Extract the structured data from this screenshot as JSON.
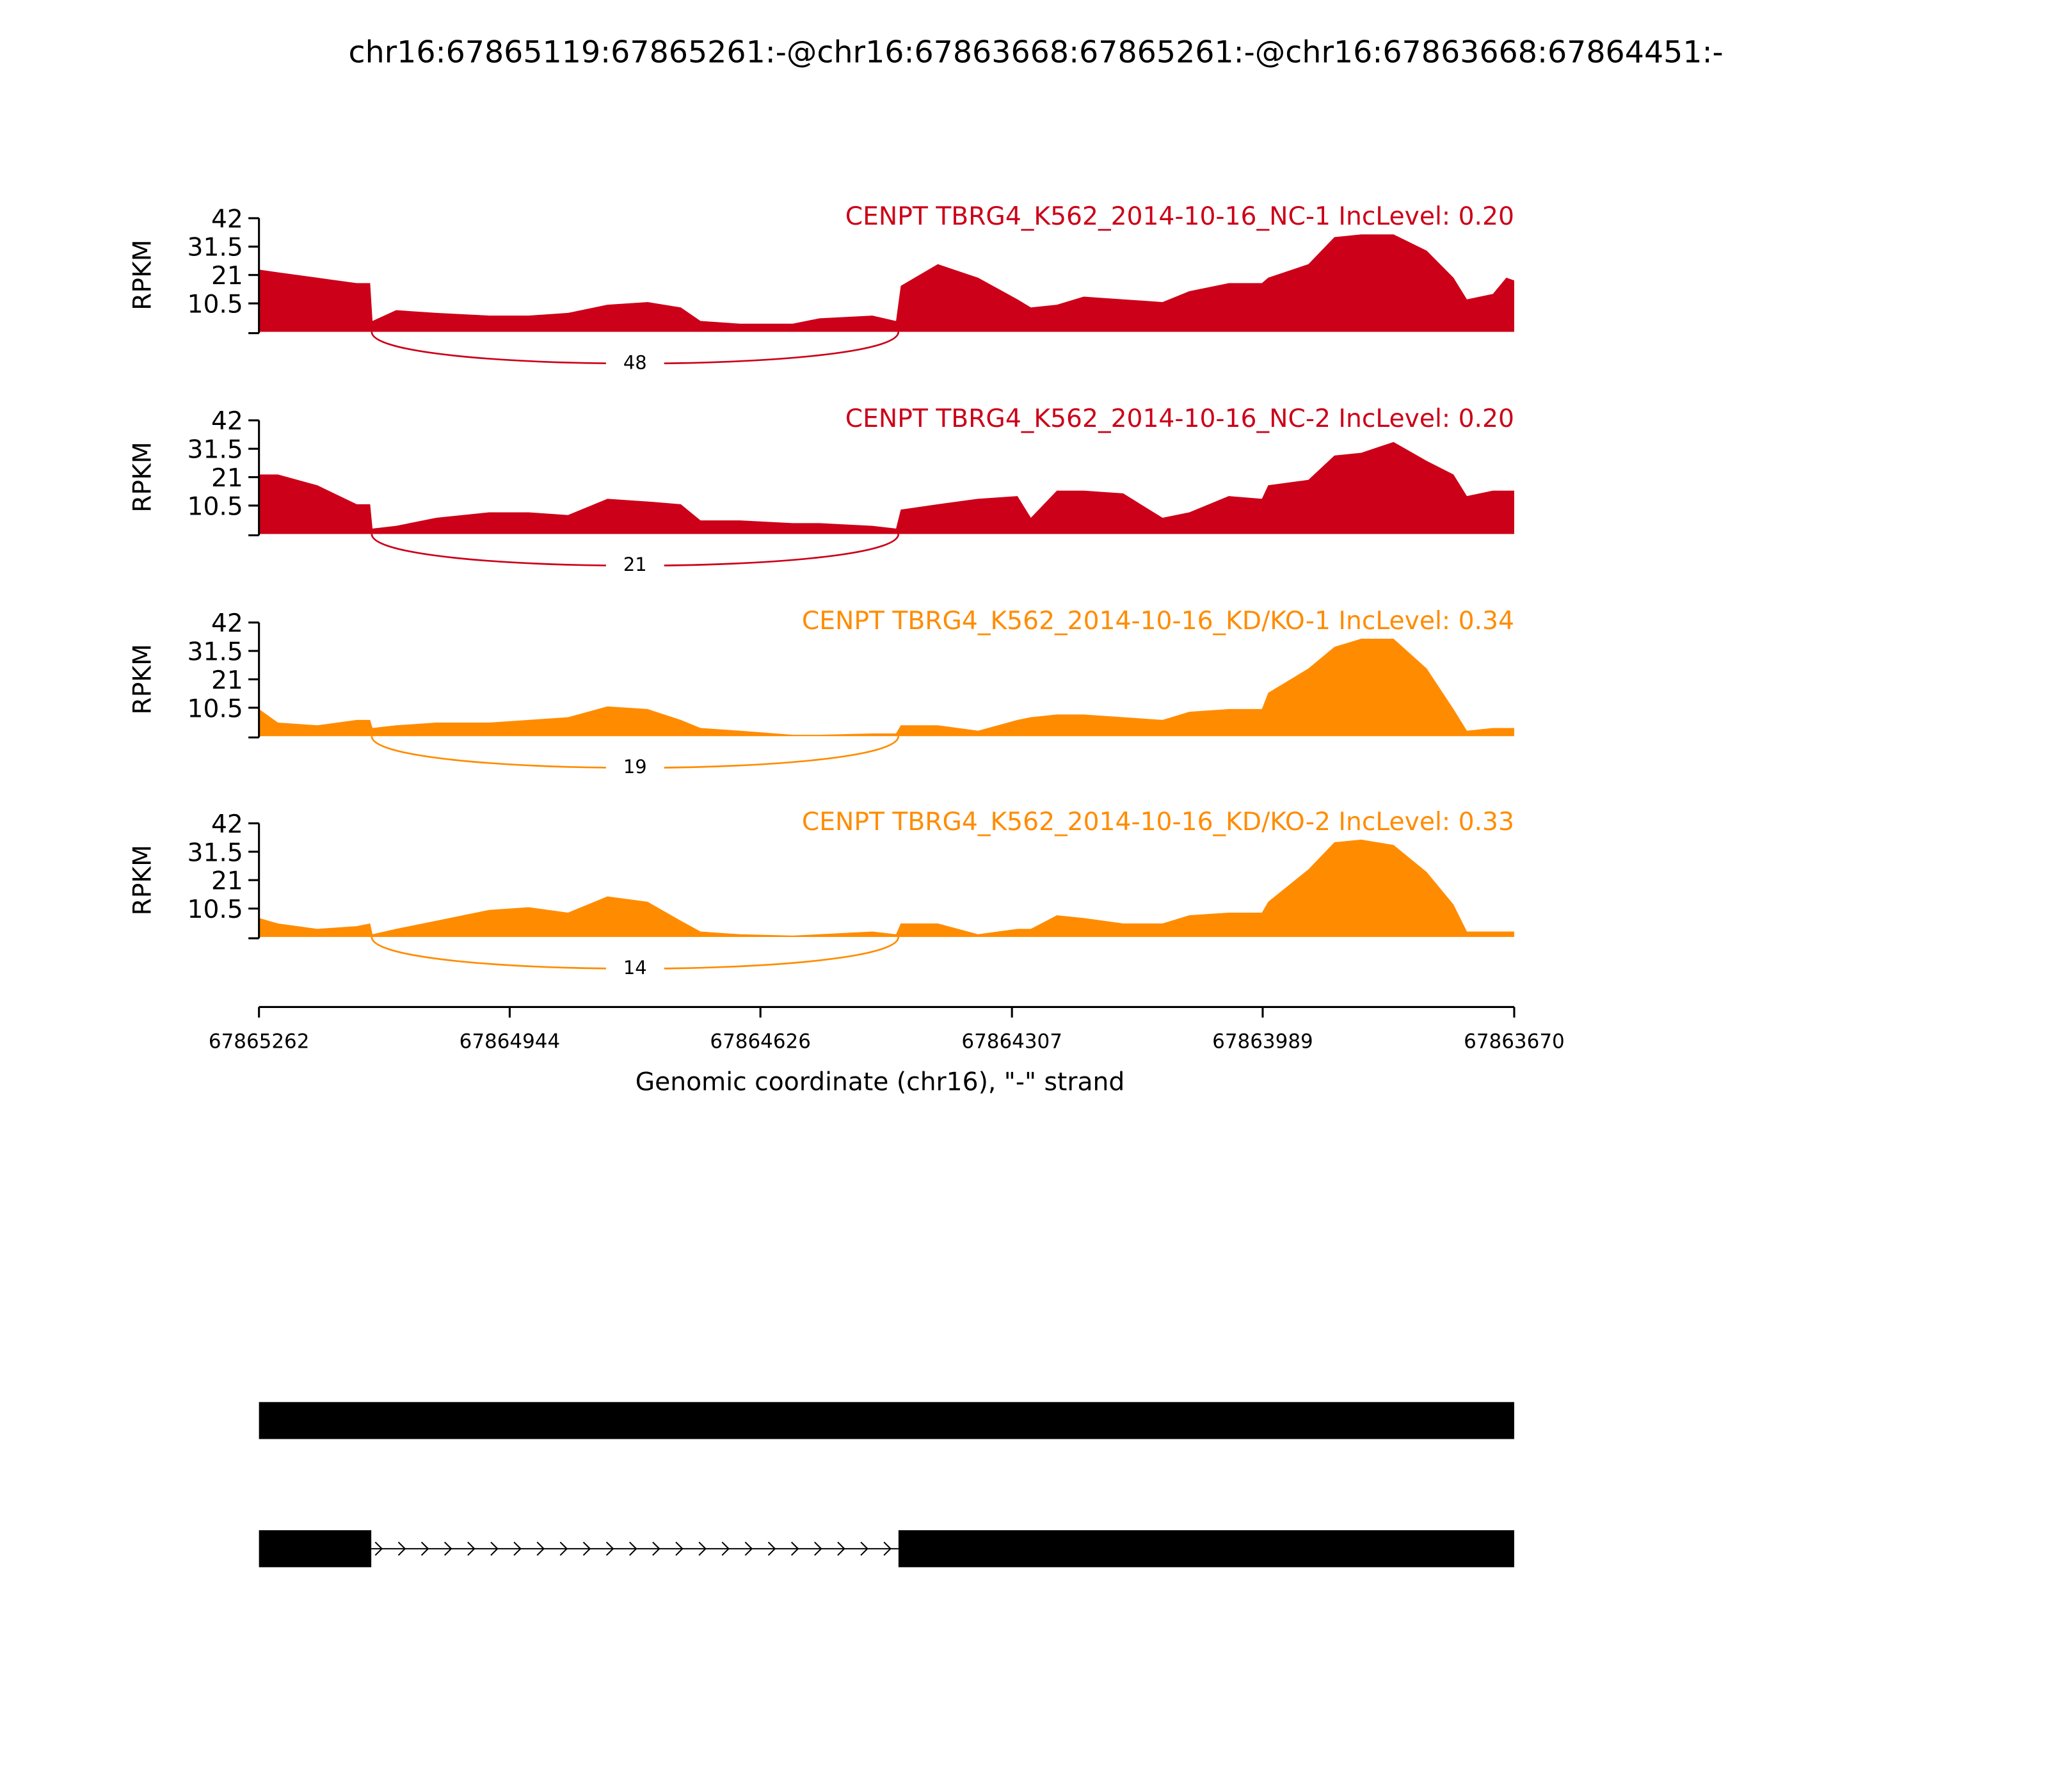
{
  "chart_data": [
    {
      "type": "area",
      "title": "chr16:67865119:67865261:-@chr16:67863668:67865261:-@chr16:67863668:67864451:-",
      "label": "CENPT TBRG4_K562_2014-10-16_NC-1 IncLevel: 0.20",
      "color": "#cc0018",
      "ylabel": "RPKM",
      "xlim": [
        67865262,
        67863670
      ],
      "ylim": [
        0,
        42
      ],
      "yticks": [
        10.5,
        21,
        31.5,
        42
      ],
      "x": [
        67865262,
        67865238,
        67865188,
        67865138,
        67865121,
        67865118,
        67865088,
        67865037,
        67864970,
        67864920,
        67864870,
        67864820,
        67864769,
        67864727,
        67864702,
        67864652,
        67864585,
        67864551,
        67864484,
        67864454,
        67864448,
        67864401,
        67864350,
        67864300,
        67864283,
        67864250,
        67864216,
        67864166,
        67864116,
        67864082,
        67864032,
        67863990,
        67863982,
        67863931,
        67863898,
        67863864,
        67863823,
        67863781,
        67863747,
        67863730,
        67863697,
        67863680,
        67863670
      ],
      "values": [
        23,
        22,
        20,
        18,
        18,
        4,
        8,
        7,
        6,
        6,
        7,
        10,
        11,
        9,
        4,
        3,
        3,
        5,
        6,
        4,
        17,
        25,
        20,
        12,
        9,
        10,
        13,
        12,
        11,
        15,
        18,
        18,
        20,
        25,
        35,
        36,
        36,
        30,
        20,
        12,
        14,
        20,
        19
      ],
      "junctions": [
        {
          "start": 67865119,
          "end": 67864451,
          "count": 48
        }
      ]
    },
    {
      "type": "area",
      "label": "CENPT TBRG4_K562_2014-10-16_NC-2 IncLevel: 0.20",
      "color": "#cc0018",
      "ylabel": "RPKM",
      "xlim": [
        67865262,
        67863670
      ],
      "ylim": [
        0,
        42
      ],
      "yticks": [
        10.5,
        21,
        31.5,
        42
      ],
      "x": [
        67865262,
        67865238,
        67865188,
        67865138,
        67865121,
        67865118,
        67865088,
        67865037,
        67864970,
        67864920,
        67864870,
        67864820,
        67864769,
        67864727,
        67864702,
        67864652,
        67864585,
        67864551,
        67864484,
        67864454,
        67864448,
        67864401,
        67864350,
        67864300,
        67864283,
        67864250,
        67864216,
        67864166,
        67864116,
        67864082,
        67864032,
        67863990,
        67863982,
        67863931,
        67863898,
        67863864,
        67863823,
        67863781,
        67863747,
        67863730,
        67863697,
        67863680,
        67863670
      ],
      "values": [
        22,
        22,
        18,
        11,
        11,
        2,
        3,
        6,
        8,
        8,
        7,
        13,
        12,
        11,
        5,
        5,
        4,
        4,
        3,
        2,
        9,
        11,
        13,
        14,
        6,
        16,
        16,
        15,
        6,
        8,
        14,
        13,
        18,
        20,
        29,
        30,
        34,
        27,
        22,
        14,
        16,
        16,
        16
      ],
      "junctions": [
        {
          "start": 67865119,
          "end": 67864451,
          "count": 21
        }
      ]
    },
    {
      "type": "area",
      "label": "CENPT TBRG4_K562_2014-10-16_KD/KO-1 IncLevel: 0.34",
      "color": "#ff8c00",
      "ylabel": "RPKM",
      "xlim": [
        67865262,
        67863670
      ],
      "ylim": [
        0,
        42
      ],
      "yticks": [
        10.5,
        21,
        31.5,
        42
      ],
      "x": [
        67865262,
        67865238,
        67865188,
        67865138,
        67865121,
        67865118,
        67865088,
        67865037,
        67864970,
        67864920,
        67864870,
        67864820,
        67864769,
        67864727,
        67864702,
        67864652,
        67864585,
        67864551,
        67864484,
        67864454,
        67864448,
        67864401,
        67864350,
        67864300,
        67864283,
        67864250,
        67864216,
        67864166,
        67864116,
        67864082,
        67864032,
        67863990,
        67863982,
        67863931,
        67863898,
        67863864,
        67863823,
        67863781,
        67863747,
        67863730,
        67863697,
        67863680,
        67863670
      ],
      "values": [
        10,
        5,
        4,
        6,
        6,
        3,
        4,
        5,
        5,
        6,
        7,
        11,
        10,
        6,
        3,
        2,
        0.5,
        0.5,
        1,
        1,
        4,
        4,
        2,
        6,
        7,
        8,
        8,
        7,
        6,
        9,
        10,
        10,
        16,
        25,
        33,
        36,
        36,
        25,
        10,
        2,
        3,
        3,
        3
      ],
      "junctions": [
        {
          "start": 67865119,
          "end": 67864451,
          "count": 19
        }
      ]
    },
    {
      "type": "area",
      "label": "CENPT TBRG4_K562_2014-10-16_KD/KO-2 IncLevel: 0.33",
      "color": "#ff8c00",
      "ylabel": "RPKM",
      "xlim": [
        67865262,
        67863670
      ],
      "ylim": [
        0,
        42
      ],
      "yticks": [
        10.5,
        21,
        31.5,
        42
      ],
      "x": [
        67865262,
        67865238,
        67865188,
        67865138,
        67865121,
        67865118,
        67865088,
        67865037,
        67864970,
        67864920,
        67864870,
        67864820,
        67864769,
        67864727,
        67864702,
        67864652,
        67864585,
        67864551,
        67864484,
        67864454,
        67864448,
        67864401,
        67864350,
        67864300,
        67864283,
        67864250,
        67864216,
        67864166,
        67864116,
        67864082,
        67864032,
        67863990,
        67863982,
        67863931,
        67863898,
        67863864,
        67863823,
        67863781,
        67863747,
        67863730,
        67863697,
        67863680,
        67863670
      ],
      "values": [
        7,
        5,
        3,
        4,
        5,
        1,
        3,
        6,
        10,
        11,
        9,
        15,
        13,
        6,
        2,
        1,
        0.5,
        1,
        2,
        1,
        5,
        5,
        1,
        3,
        3,
        8,
        7,
        5,
        5,
        8,
        9,
        9,
        13,
        25,
        35,
        36,
        34,
        24,
        12,
        2,
        2,
        2,
        2
      ],
      "junctions": [
        {
          "start": 67865119,
          "end": 67864451,
          "count": 14
        }
      ],
      "xticks": [
        67865262,
        67864944,
        67864626,
        67864307,
        67863989,
        67863670
      ],
      "xlabel": "Genomic coordinate (chr16), \"-\" strand"
    }
  ]
}
